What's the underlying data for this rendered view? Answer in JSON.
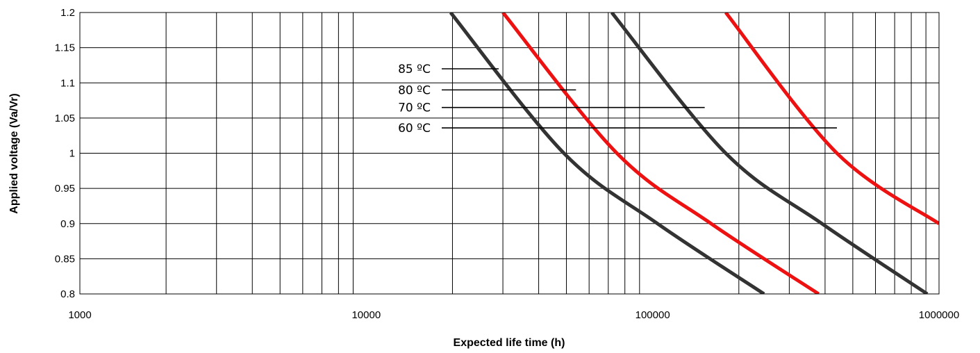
{
  "chart_data": {
    "type": "line",
    "title": "",
    "xlabel": "Expected life time (h)",
    "ylabel": "Applied voltage (Va/Vr)",
    "x_scale": "log",
    "xlim": [
      1000,
      1000000
    ],
    "ylim": [
      0.8,
      1.2
    ],
    "x_ticks": [
      "1000",
      "10000",
      "100000",
      "1000000"
    ],
    "y_ticks": [
      "0.8",
      "0.85",
      "0.9",
      "0.95",
      "1",
      "1.05",
      "1.1",
      "1.15",
      "1.2"
    ],
    "grid": true,
    "series": [
      {
        "color": "#333333",
        "x": [
          19700,
          49000,
          104000,
          245000
        ],
        "y": [
          1.2,
          1.0,
          0.9,
          0.8
        ]
      },
      {
        "color": "#ee1111",
        "x": [
          30000,
          75000,
          160000,
          380000
        ],
        "y": [
          1.2,
          1.0,
          0.9,
          0.8
        ]
      },
      {
        "color": "#333333",
        "x": [
          72000,
          180000,
          390000,
          910000
        ],
        "y": [
          1.2,
          1.0,
          0.9,
          0.8
        ]
      },
      {
        "color": "#ee1111",
        "x": [
          180000,
          440000,
          1000000
        ],
        "y": [
          1.2,
          1.0,
          0.9
        ]
      }
    ],
    "annotations": [
      {
        "text": "85 ºC",
        "x_end": 29000,
        "y": 1.12
      },
      {
        "text": "80 ºC",
        "x_end": 54000,
        "y": 1.09
      },
      {
        "text": "70 ºC",
        "x_end": 152000,
        "y": 1.065
      },
      {
        "text": "60 ºC",
        "x_end": 440000,
        "y": 1.036
      }
    ]
  }
}
